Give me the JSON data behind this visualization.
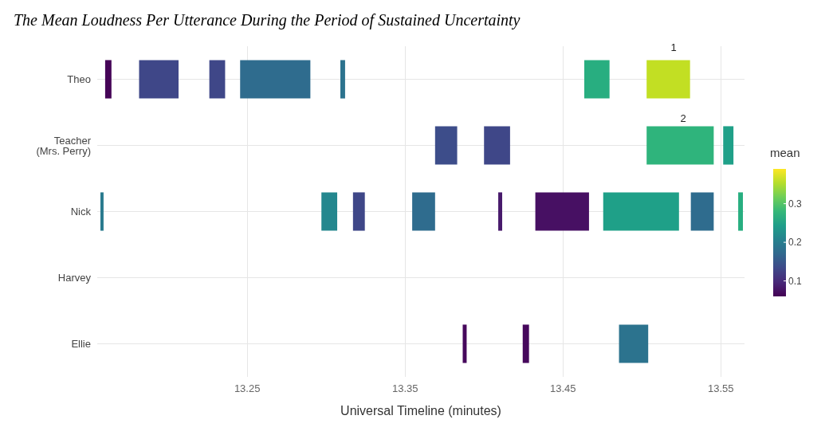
{
  "chart_data": {
    "type": "bar",
    "orientation": "horizontal",
    "title": "The Mean Loudness Per Utterance During the Period of Sustained Uncertainty",
    "xlabel": "Universal Timeline (minutes)",
    "clabel": "mean",
    "categories": [
      "Theo",
      "Teacher\n(Mrs. Perry)",
      "Nick",
      "Harvey",
      "Ellie"
    ],
    "xlim": [
      13.155,
      13.565
    ],
    "xticks": [
      13.25,
      13.35,
      13.45,
      13.55
    ],
    "clim": [
      0.06,
      0.39
    ],
    "cticks": [
      0.1,
      0.2,
      0.3
    ],
    "grid": true,
    "series": [
      {
        "base": [
          13.16,
          13.369,
          13.157,
          null,
          13.3865
        ],
        "values": [
          0.004,
          0.014,
          0.002,
          null,
          0.0025
        ],
        "colors": [
          "#450457",
          "#3d4d8a",
          "#297a8e",
          null,
          "#46085c"
        ]
      },
      {
        "base": [
          13.1815,
          13.4,
          13.297,
          null,
          13.4245
        ],
        "values": [
          0.025,
          0.0165,
          0.01,
          null,
          0.004
        ],
        "colors": [
          "#3f4788",
          "#3f4788",
          "#24878e",
          null,
          "#46085c"
        ]
      },
      {
        "base": [
          13.226,
          13.503,
          13.317,
          null,
          13.4855
        ],
        "values": [
          0.01,
          0.0425,
          0.0075,
          null,
          0.0185
        ],
        "colors": [
          "#3f4788",
          "#2fb47c",
          "#3f4788",
          null,
          "#2c738e"
        ]
      },
      {
        "base": [
          13.2455,
          13.5515,
          13.3545,
          null,
          null
        ],
        "values": [
          0.0445,
          0.0065,
          0.0145,
          null,
          null
        ],
        "colors": [
          "#2f6c8e",
          "#1fa088",
          "#2f6c8e",
          null,
          null
        ]
      },
      {
        "base": [
          13.309,
          null,
          13.409,
          null,
          null
        ],
        "values": [
          0.003,
          null,
          0.0025,
          null,
          null
        ],
        "colors": [
          "#2c738e",
          null,
          "#481a6c",
          null,
          null
        ]
      },
      {
        "base": [
          13.4635,
          null,
          13.4325,
          null,
          null
        ],
        "values": [
          0.016,
          null,
          0.034,
          null,
          null
        ],
        "colors": [
          "#28ae80",
          null,
          "#471063",
          null,
          null
        ]
      },
      {
        "base": [
          13.503,
          null,
          13.4755,
          null,
          null
        ],
        "values": [
          0.0275,
          null,
          0.048,
          null,
          null
        ],
        "colors": [
          "#c2df23",
          null,
          "#1fa088",
          null,
          null
        ]
      },
      {
        "base": [
          null,
          null,
          13.531,
          null,
          null
        ],
        "values": [
          null,
          null,
          0.0145,
          null,
          null
        ],
        "colors": [
          null,
          null,
          "#2f6c8e",
          null,
          null
        ]
      },
      {
        "base": [
          null,
          null,
          13.561,
          null,
          null
        ],
        "values": [
          null,
          null,
          0.003,
          null,
          null
        ],
        "colors": [
          null,
          null,
          "#28ae80",
          null,
          null
        ]
      }
    ],
    "annotations": [
      "1",
      "2"
    ]
  }
}
